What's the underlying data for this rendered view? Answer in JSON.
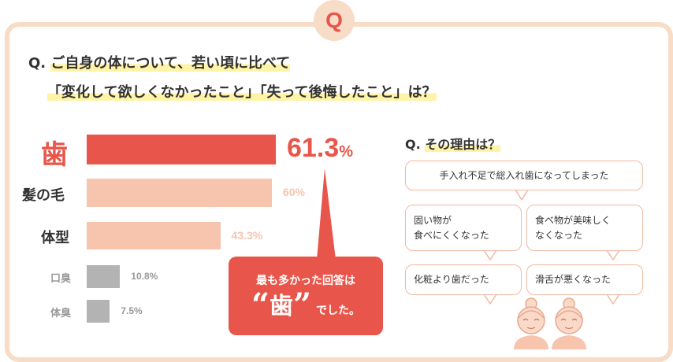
{
  "badge": "Q",
  "question": {
    "prefix": "Q.",
    "line1": "ご自身の体について、若い頃に比べて",
    "line2": "「変化して欲しくなかったこと」「失って後悔したこと」は？"
  },
  "chart_data": {
    "type": "bar",
    "orientation": "horizontal",
    "categories": [
      "歯",
      "髪の毛",
      "体型",
      "口臭",
      "体臭"
    ],
    "values": [
      61.3,
      60,
      43.3,
      10.8,
      7.5
    ],
    "value_labels": [
      "61.3",
      "60%",
      "43.3%",
      "10.8%",
      "7.5%"
    ],
    "value_label_unit": "%",
    "xlim": [
      0,
      70
    ],
    "colors": [
      "#e8554a",
      "#f7c4ae",
      "#f7c4ae",
      "#b3b3b3",
      "#b3b3b3"
    ],
    "label_colors": [
      "#e8554a",
      "#333333",
      "#333333",
      "#999999",
      "#999999"
    ],
    "grid": false
  },
  "callout": {
    "line1": "最も多かった回答は",
    "open_quote": "“",
    "highlight": "歯",
    "close_quote": "”",
    "suffix": "でした。"
  },
  "reasons": {
    "title_prefix": "Q.",
    "title": "その理由は？",
    "items": [
      "手入れ不足で総入れ歯になってしまった",
      "固い物が\n食べにくくなった",
      "食べ物が美味しく\nなくなった",
      "化粧より歯だった",
      "滑舌が悪くなった"
    ]
  },
  "colors": {
    "accent": "#e8554a",
    "frame": "#f7dcc7",
    "highlight": "#fff3a6",
    "bubble_border": "#f0b9a2",
    "face": "#f7c4ae"
  }
}
